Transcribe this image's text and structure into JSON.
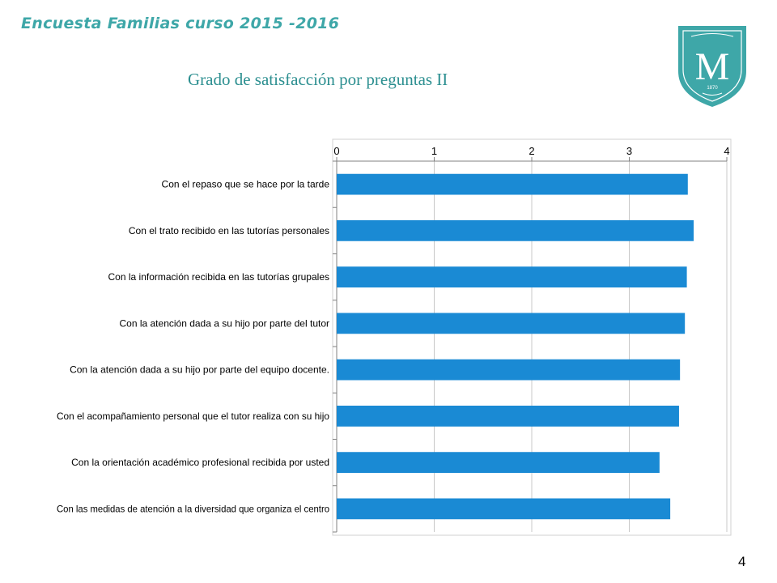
{
  "slide": {
    "header_title": "Encuesta Familias curso 2015 -2016",
    "page_number": "4"
  },
  "logo": {
    "letter": "M",
    "year": "1870",
    "shield_color": "#3ea7a8"
  },
  "colors": {
    "bar": "#1a8ad4",
    "title": "#2c8f90",
    "header": "#3ea7a8"
  },
  "chart_data": {
    "type": "bar",
    "orientation": "horizontal",
    "title": "Grado de satisfacción por preguntas II",
    "xlabel": "",
    "ylabel": "",
    "xlim": [
      0,
      4
    ],
    "ticks": [
      "0",
      "1",
      "2",
      "3",
      "4"
    ],
    "grid": true,
    "legend": "none",
    "categories": [
      "Con el repaso que se hace por la tarde",
      "Con el trato recibido en las tutorías personales",
      "Con la información recibida en las tutorías grupales",
      "Con la atención dada a su hijo por parte del tutor",
      "Con la atención dada a su hijo por parte del equipo docente.",
      "Con el acompañamiento personal que el tutor realiza con su hijo",
      "Con  la orientación académico profesional recibida por usted",
      "Con las medidas de atención a la diversidad que organiza el centro"
    ],
    "values": [
      3.6,
      3.66,
      3.59,
      3.57,
      3.52,
      3.51,
      3.31,
      3.42
    ]
  }
}
